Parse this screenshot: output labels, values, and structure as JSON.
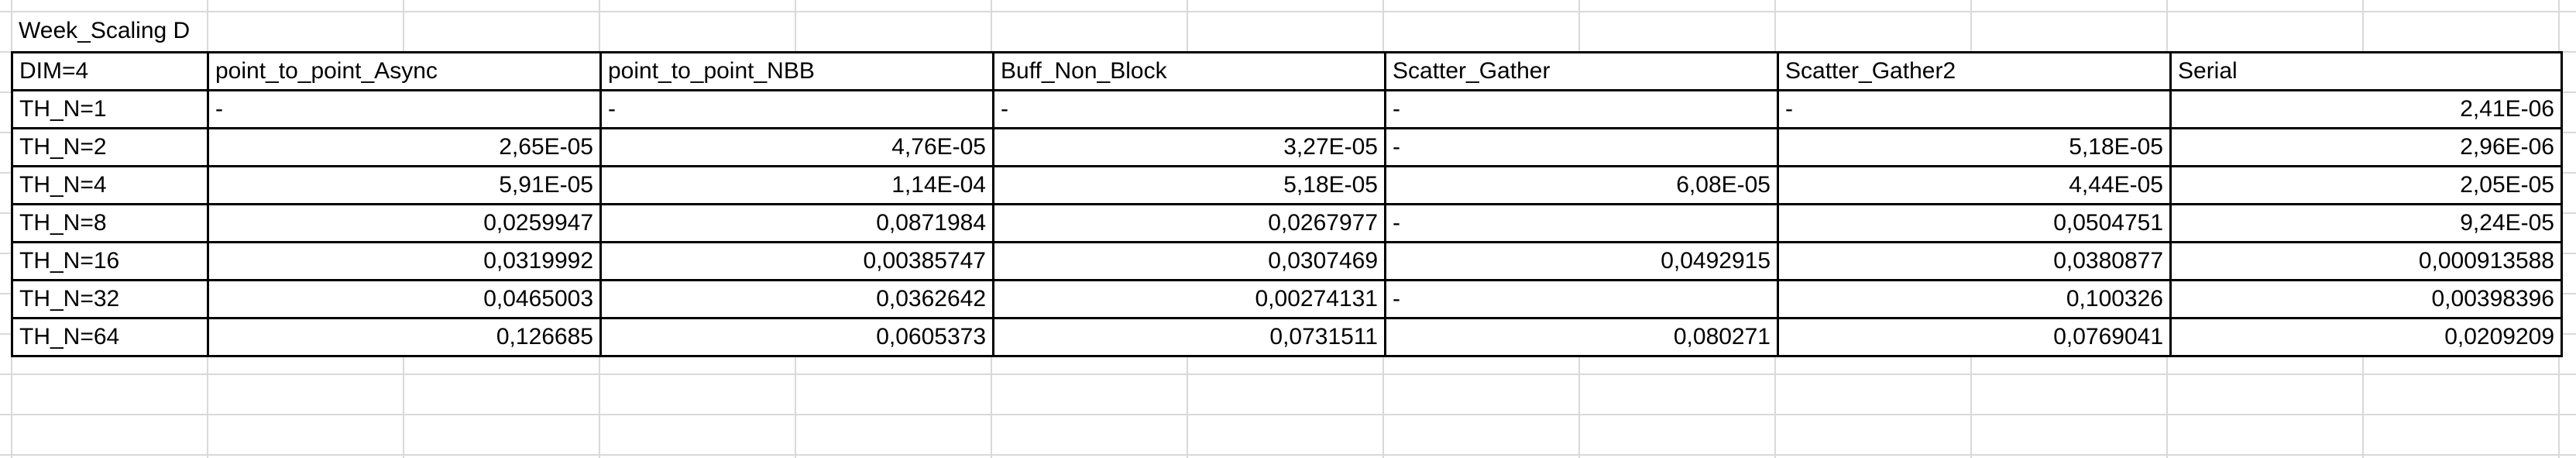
{
  "sheet_title": "Week_Scaling D",
  "header": [
    "DIM=4",
    "point_to_point_Async",
    "point_to_point_NBB",
    "Buff_Non_Block",
    "Scatter_Gather",
    "Scatter_Gather2",
    "Serial"
  ],
  "rows": [
    [
      "TH_N=1",
      "-",
      "-",
      "-",
      "-",
      "-",
      "2,41E-06"
    ],
    [
      "TH_N=2",
      "2,65E-05",
      "4,76E-05",
      "3,27E-05",
      "-",
      "5,18E-05",
      "2,96E-06"
    ],
    [
      "TH_N=4",
      "5,91E-05",
      "1,14E-04",
      "5,18E-05",
      "6,08E-05",
      "4,44E-05",
      "2,05E-05"
    ],
    [
      "TH_N=8",
      "0,0259947",
      "0,0871984",
      "0,0267977",
      "-",
      "0,0504751",
      "9,24E-05"
    ],
    [
      "TH_N=16",
      "0,0319992",
      "0,00385747",
      "0,0307469",
      "0,0492915",
      "0,0380877",
      "0,000913588"
    ],
    [
      "TH_N=32",
      "0,0465003",
      "0,0362642",
      "0,00274131",
      "-",
      "0,100326",
      "0,00398396"
    ],
    [
      "TH_N=64",
      "0,126685",
      "0,0605373",
      "0,0731511",
      "0,080271",
      "0,0769041",
      "0,0209209"
    ]
  ]
}
